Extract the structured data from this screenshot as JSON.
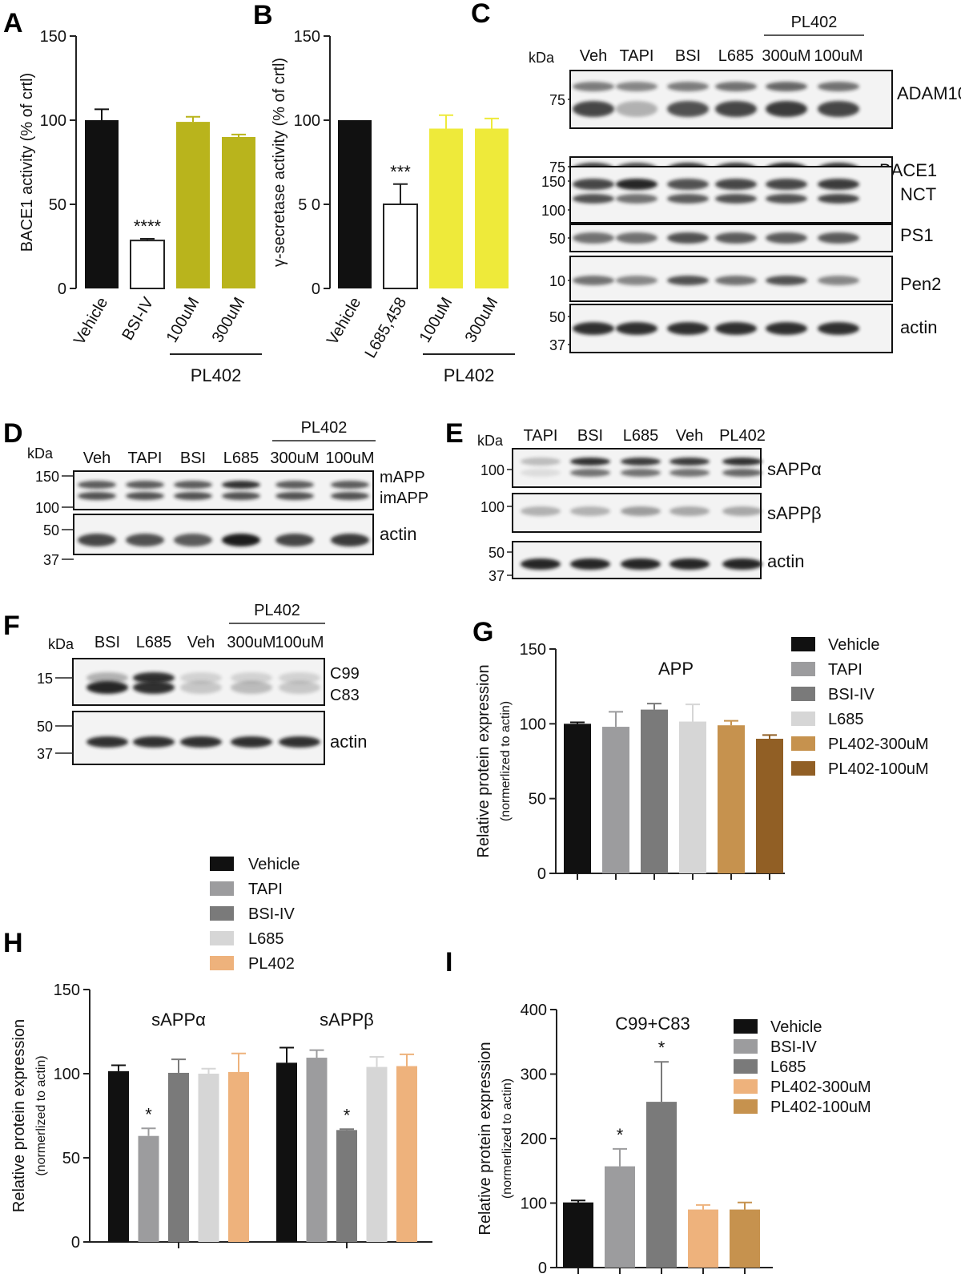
{
  "panel_letters": [
    "A",
    "B",
    "C",
    "D",
    "E",
    "F",
    "G",
    "H",
    "I"
  ],
  "chart_data": [
    {
      "id": "A",
      "type": "bar",
      "ylabel": "BACE1 activity (% of crtl)",
      "categories": [
        "Vehicle",
        "BSI-IV",
        "100uM",
        "300uM"
      ],
      "values": [
        100,
        28.5,
        99,
        90
      ],
      "errors": [
        6.5,
        1,
        3,
        1.5
      ],
      "colors": [
        "#111111",
        "#ffffff",
        "#b9b41c",
        "#b9b41c"
      ],
      "sig": [
        "",
        "****",
        "",
        ""
      ],
      "ylim": [
        0,
        150
      ],
      "yticks": [
        0,
        50,
        100,
        150
      ],
      "group": {
        "label": "PL402",
        "from": 2,
        "to": 3
      }
    },
    {
      "id": "B",
      "type": "bar",
      "ylabel": "γ-secretase activity (% of crtl)",
      "categories": [
        "Vehicle",
        "L685,458",
        "100uM",
        "300uM"
      ],
      "values": [
        100,
        50,
        95,
        95
      ],
      "errors": [
        0,
        12,
        8,
        6
      ],
      "colors": [
        "#111111",
        "#ffffff",
        "#eeea3a",
        "#eeea3a"
      ],
      "sig": [
        "",
        "***",
        "",
        ""
      ],
      "ylim": [
        0,
        150
      ],
      "yticks": [
        0,
        50,
        100,
        150
      ],
      "yticklabels": [
        "0",
        "5 0",
        "100",
        "150"
      ],
      "group": {
        "label": "PL402",
        "from": 2,
        "to": 3
      }
    },
    {
      "id": "G",
      "type": "bar",
      "title": "APP",
      "ylabel": "Relative protein expression",
      "ylabel2": "(normerlized to actin)",
      "categories": [
        "Vehicle",
        "TAPI",
        "BSI-IV",
        "L685",
        "PL402-300uM",
        "PL402-100uM"
      ],
      "values": [
        100,
        98,
        109.5,
        101.5,
        99,
        90
      ],
      "errors": [
        1,
        10,
        4,
        11.5,
        3,
        2.5
      ],
      "colors": [
        "#111111",
        "#9c9c9e",
        "#7a7a7a",
        "#d6d6d6",
        "#c6924e",
        "#915f25"
      ],
      "ylim": [
        0,
        150
      ],
      "yticks": [
        0,
        50,
        100,
        150
      ],
      "legend": [
        "Vehicle",
        "TAPI",
        "BSI-IV",
        "L685",
        "PL402-300uM",
        "PL402-100uM"
      ]
    },
    {
      "id": "H",
      "type": "bar",
      "ylabel": "Relative protein expression",
      "ylabel2": "(normerlized to actin)",
      "groups": [
        {
          "title": "sAPPα",
          "values": [
            101.5,
            63,
            100.5,
            100,
            101
          ],
          "errors": [
            3.5,
            4.5,
            8,
            3,
            11
          ],
          "sig": [
            "",
            "*",
            "",
            "",
            ""
          ]
        },
        {
          "title": "sAPPβ",
          "values": [
            106.5,
            109.5,
            66.5,
            104,
            104.5
          ],
          "errors": [
            9,
            4.5,
            0.5,
            6,
            7
          ],
          "sig": [
            "",
            "",
            "*",
            "",
            ""
          ]
        }
      ],
      "series": [
        "Vehicle",
        "TAPI",
        "BSI-IV",
        "L685",
        "PL402"
      ],
      "colors": [
        "#111111",
        "#9c9c9e",
        "#7a7a7a",
        "#d6d6d6",
        "#eeb27c"
      ],
      "ylim": [
        0,
        150
      ],
      "yticks": [
        0,
        50,
        100,
        150
      ],
      "legend": [
        "Vehicle",
        "TAPI",
        "BSI-IV",
        "L685",
        "PL402"
      ]
    },
    {
      "id": "I",
      "type": "bar",
      "title": "C99+C83",
      "ylabel": "Relative protein expression",
      "ylabel2": "(normerlized to actin)",
      "categories": [
        "Vehicle",
        "BSI-IV",
        "L685",
        "PL402-300uM",
        "PL402-100uM"
      ],
      "values": [
        101,
        157,
        257,
        90,
        90
      ],
      "errors": [
        3,
        27,
        62,
        7,
        11
      ],
      "colors": [
        "#111111",
        "#9c9c9e",
        "#7a7a7a",
        "#eeb27c",
        "#c6924e"
      ],
      "sig": [
        "",
        "*",
        "*",
        "",
        ""
      ],
      "ylim": [
        0,
        400
      ],
      "yticks": [
        0,
        100,
        200,
        300,
        400
      ],
      "legend": [
        "Vehicle",
        "BSI-IV",
        "L685",
        "PL402-300uM",
        "PL402-100uM"
      ]
    }
  ],
  "blots": {
    "C": {
      "kda": "kDa",
      "lanes": [
        "Veh",
        "TAPI",
        "BSI",
        "L685",
        "300uM",
        "100uM"
      ],
      "group": {
        "label": "PL402",
        "from": 4,
        "to": 5
      },
      "rows": [
        {
          "name": "ADAM10",
          "markers": [
            "75"
          ]
        },
        {
          "name": "BACE1",
          "markers": [
            "75"
          ]
        },
        {
          "name": "NCT",
          "markers": [
            "150",
            "100"
          ]
        },
        {
          "name": "PS1",
          "markers": [
            "50"
          ]
        },
        {
          "name": "Pen2",
          "markers": [
            "10"
          ]
        },
        {
          "name": "actin",
          "markers": [
            "50",
            "37"
          ]
        }
      ]
    },
    "D": {
      "kda": "kDa",
      "lanes": [
        "Veh",
        "TAPI",
        "BSI",
        "L685",
        "300uM",
        "100uM"
      ],
      "group": {
        "label": "PL402",
        "from": 4,
        "to": 5
      },
      "rows": [
        {
          "names": [
            "mAPP",
            "imAPP"
          ],
          "markers": [
            "150",
            "100"
          ]
        },
        {
          "name": "actin",
          "markers": [
            "50",
            "37"
          ]
        }
      ]
    },
    "E": {
      "kda": "kDa",
      "lanes": [
        "TAPI",
        "BSI",
        "L685",
        "Veh",
        "PL402"
      ],
      "rows": [
        {
          "name": "sAPPα",
          "markers": [
            "100"
          ]
        },
        {
          "name": "sAPPβ",
          "markers": [
            "100"
          ]
        },
        {
          "name": "actin",
          "markers": [
            "50",
            "37"
          ]
        }
      ]
    },
    "F": {
      "kda": "kDa",
      "lanes": [
        "BSI",
        "L685",
        "Veh",
        "300uM",
        "100uM"
      ],
      "group": {
        "label": "PL402",
        "from": 3,
        "to": 4
      },
      "rows": [
        {
          "names": [
            "C99",
            "C83"
          ],
          "markers": [
            "15"
          ]
        },
        {
          "name": "actin",
          "markers": [
            "50",
            "37"
          ]
        }
      ]
    }
  }
}
